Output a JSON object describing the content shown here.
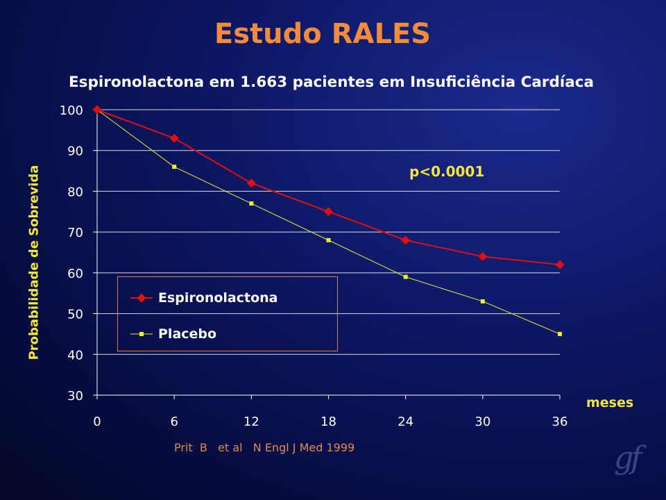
{
  "slide": {
    "title": "Estudo RALES",
    "subtitle": "Espironolactona em 1.663 pacientes em Insuficiência Cardíaca",
    "citation": "Prit  B   et al   N Engl J Med 1999",
    "signature": "gf"
  },
  "chart_data": {
    "type": "line",
    "title": "",
    "xlabel": "meses",
    "ylabel": "Probabilidade de Sobrevida",
    "x": [
      0,
      6,
      12,
      18,
      24,
      30,
      36
    ],
    "xlim": [
      0,
      36
    ],
    "ylim": [
      30,
      100
    ],
    "xticks": [
      0,
      6,
      12,
      18,
      24,
      30,
      36
    ],
    "yticks": [
      30,
      40,
      50,
      60,
      70,
      80,
      90,
      100
    ],
    "grid": "horizontal",
    "legend": {
      "placement": "lower-left"
    },
    "annotation": "p<0.0001",
    "series": [
      {
        "name": "Espironolactona",
        "values": [
          100,
          93,
          82,
          75,
          68,
          64,
          62
        ],
        "color": "#e01010",
        "marker": "diamond"
      },
      {
        "name": "Placebo",
        "values": [
          100,
          86,
          77,
          68,
          59,
          53,
          45
        ],
        "color": "#eeee33",
        "marker": "square"
      }
    ],
    "colors": {
      "axis": "#ffffff",
      "grid": "#ffffff",
      "tick_text": "#ffffff"
    }
  }
}
